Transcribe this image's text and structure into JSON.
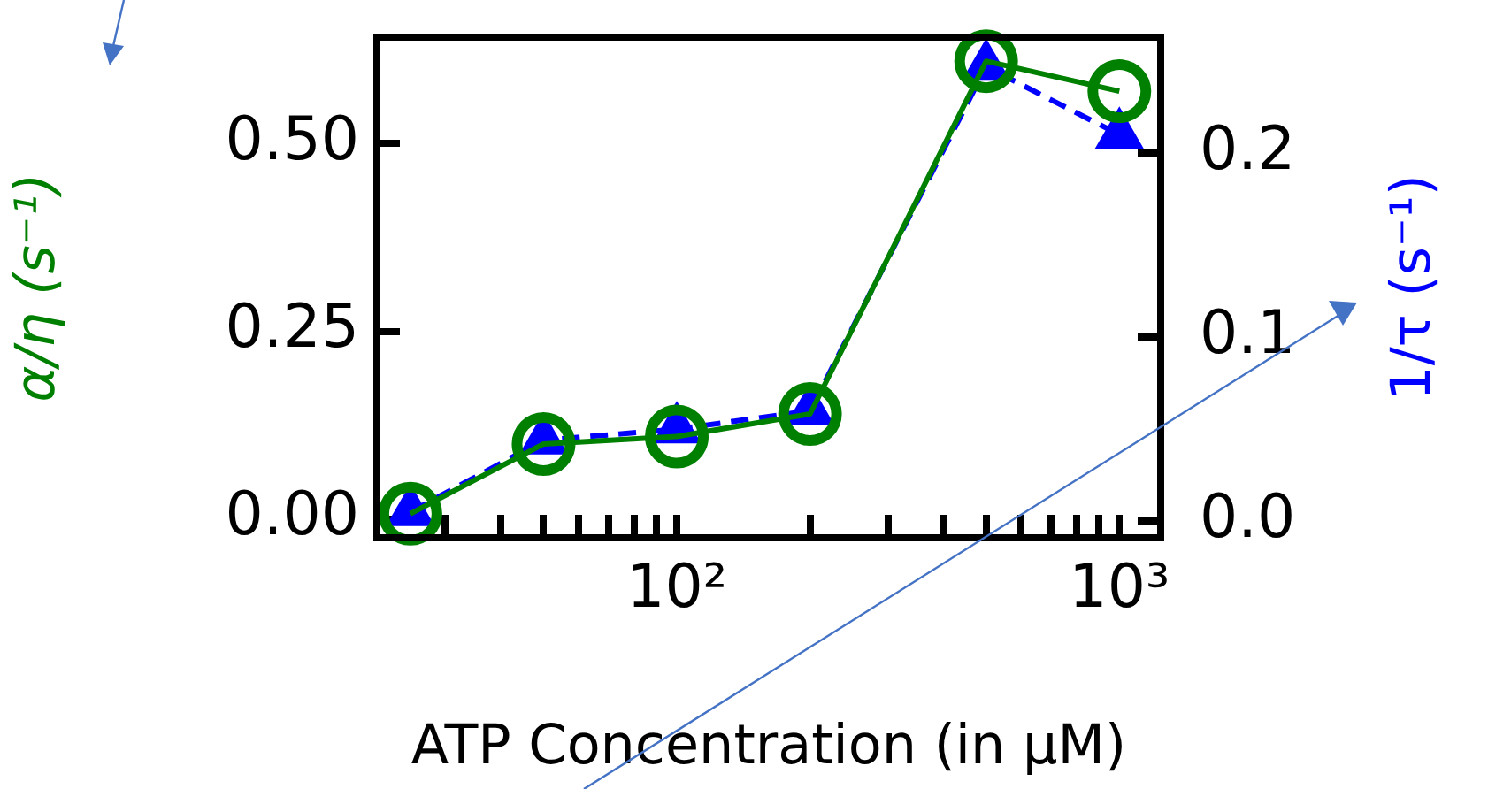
{
  "chart_data": {
    "type": "line",
    "xlabel": "ATP Concentration (in μM)",
    "ylabel": "α/η (s⁻¹)",
    "y2label": "1/τ (s⁻¹)",
    "x": [
      25,
      50,
      100,
      200,
      500,
      1000
    ],
    "log": "x",
    "xlim": [
      21,
      1240
    ],
    "xticks": [
      {
        "value": 30,
        "label": null
      },
      {
        "value": 40,
        "label": null
      },
      {
        "value": 50,
        "label": null
      },
      {
        "value": 60,
        "label": null
      },
      {
        "value": 70,
        "label": null
      },
      {
        "value": 80,
        "label": null
      },
      {
        "value": 90,
        "label": null
      },
      {
        "value": 100,
        "label": "10²"
      },
      {
        "value": 200,
        "label": null
      },
      {
        "value": 300,
        "label": null
      },
      {
        "value": 400,
        "label": null
      },
      {
        "value": 500,
        "label": null
      },
      {
        "value": 600,
        "label": null
      },
      {
        "value": 700,
        "label": null
      },
      {
        "value": 800,
        "label": null
      },
      {
        "value": 900,
        "label": null
      },
      {
        "value": 1000,
        "label": "10³"
      }
    ],
    "ylim": [
      -0.025,
      0.642
    ],
    "yticks": [
      {
        "value": 0,
        "label": "0.00"
      },
      {
        "value": 0.25,
        "label": "0.25"
      },
      {
        "value": 0.5,
        "label": "0.50"
      }
    ],
    "y2lim": [
      -0.009,
      0.263
    ],
    "y2ticks": [
      {
        "value": 0,
        "label": "0.0"
      },
      {
        "value": 0.1,
        "label": "0.1"
      },
      {
        "value": 0.2,
        "label": "0.2"
      }
    ],
    "grid": false,
    "legend": false,
    "series": [
      {
        "color": "#0000ff",
        "axis": "y2",
        "marker": "triangle",
        "line_style": "dashed",
        "values": [
          0.005,
          0.044,
          0.05,
          0.06,
          0.247,
          0.21
        ]
      },
      {
        "color": "#008000",
        "marker": "circle",
        "line_style": "solid",
        "values": [
          0.007,
          0.1,
          0.11,
          0.14,
          0.61,
          0.57
        ]
      }
    ]
  }
}
